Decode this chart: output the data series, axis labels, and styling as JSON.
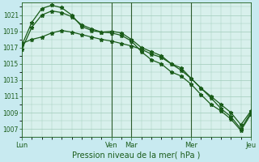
{
  "title": "",
  "xlabel": "Pression niveau de la mer( hPa )",
  "background_color": "#c8eaf0",
  "plot_bg_color": "#d8f0ec",
  "grid_color": "#a0ccbb",
  "line_color": "#1a5c1a",
  "vline_color": "#2d5c2d",
  "ylim": [
    1006.0,
    1022.5
  ],
  "yticks": [
    1007,
    1009,
    1011,
    1013,
    1015,
    1017,
    1019,
    1021
  ],
  "xtick_labels": [
    "Lun",
    "Ven",
    "Mar",
    "Mer",
    "Jeu"
  ],
  "xtick_positions": [
    0,
    9,
    11,
    17,
    23
  ],
  "n_points": 24,
  "vline_positions": [
    9,
    11,
    17,
    23
  ],
  "line1": [
    1016.8,
    1019.5,
    1021.0,
    1021.5,
    1021.3,
    1020.8,
    1019.8,
    1019.3,
    1018.9,
    1018.8,
    1018.5,
    1017.8,
    1016.5,
    1015.5,
    1015.0,
    1014.0,
    1013.5,
    1012.5,
    1011.2,
    1010.0,
    1009.2,
    1008.2,
    1006.8,
    1008.8
  ],
  "line2": [
    1017.3,
    1020.1,
    1021.8,
    1022.2,
    1021.9,
    1021.0,
    1019.6,
    1019.1,
    1018.9,
    1019.0,
    1018.8,
    1018.0,
    1017.0,
    1016.5,
    1016.0,
    1015.0,
    1014.5,
    1013.2,
    1012.0,
    1011.0,
    1010.0,
    1009.0,
    1007.5,
    1009.2
  ],
  "line3": [
    1017.5,
    1018.0,
    1018.3,
    1018.8,
    1019.1,
    1018.9,
    1018.6,
    1018.3,
    1018.0,
    1017.8,
    1017.5,
    1017.2,
    1016.8,
    1016.2,
    1015.8,
    1015.0,
    1014.2,
    1013.2,
    1012.0,
    1010.8,
    1009.5,
    1008.5,
    1007.0,
    1009.0
  ]
}
